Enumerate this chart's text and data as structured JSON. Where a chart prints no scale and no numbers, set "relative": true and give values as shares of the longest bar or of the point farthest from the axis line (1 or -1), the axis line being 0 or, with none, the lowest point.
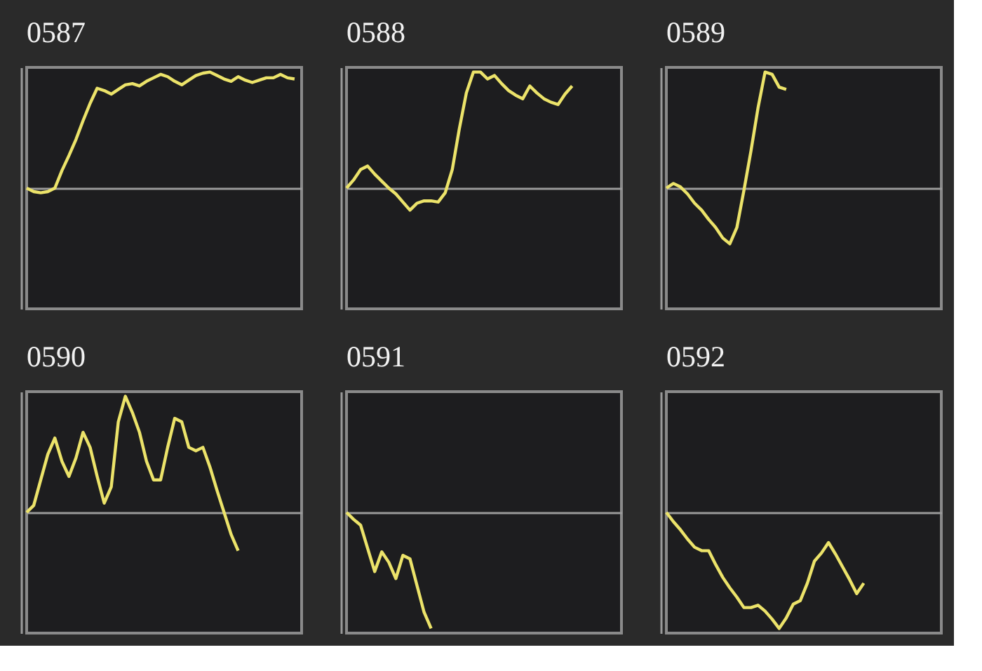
{
  "chart_data": [
    {
      "type": "line",
      "title": "0587",
      "relative": true,
      "tick_labels": false,
      "categories": [
        null,
        null,
        null,
        null,
        null,
        null,
        null,
        null,
        null,
        null,
        null,
        null,
        null,
        null,
        null,
        null,
        null,
        null,
        null,
        null,
        null,
        null,
        null,
        null,
        null,
        null,
        null,
        null,
        null,
        null,
        null,
        null,
        null,
        null,
        null,
        null,
        null,
        null,
        null,
        null
      ],
      "color": "#ece36a",
      "values": [
        0,
        -0.03,
        -0.04,
        -0.03,
        0,
        0.15,
        0.28,
        0.42,
        0.58,
        0.73,
        0.86,
        0.84,
        0.81,
        0.85,
        0.89,
        0.9,
        0.88,
        0.92,
        0.95,
        0.98,
        0.96,
        0.92,
        0.89,
        0.93,
        0.97,
        0.99,
        1,
        0.97,
        0.94,
        0.92,
        0.96,
        0.93,
        0.91,
        0.93,
        0.95,
        0.95,
        0.98,
        0.95,
        0.94,
        null
      ]
    },
    {
      "type": "line",
      "title": "0588",
      "relative": true,
      "tick_labels": false,
      "categories": [
        null,
        null,
        null,
        null,
        null,
        null,
        null,
        null,
        null,
        null,
        null,
        null,
        null,
        null,
        null,
        null,
        null,
        null,
        null,
        null,
        null,
        null,
        null,
        null,
        null,
        null,
        null,
        null,
        null,
        null,
        null,
        null,
        null,
        null,
        null,
        null,
        null,
        null,
        null,
        null
      ],
      "color": "#ece36a",
      "values": [
        0,
        0.07,
        0.16,
        0.19,
        0.12,
        0.06,
        0,
        -0.05,
        -0.12,
        -0.19,
        -0.13,
        -0.11,
        -0.11,
        -0.12,
        -0.04,
        0.16,
        0.51,
        0.82,
        1,
        1,
        0.94,
        0.97,
        0.9,
        0.84,
        0.8,
        0.77,
        0.88,
        0.82,
        0.77,
        0.74,
        0.72,
        0.81,
        0.88,
        null,
        null,
        null,
        null,
        null,
        null,
        null
      ]
    },
    {
      "type": "line",
      "title": "0589",
      "relative": true,
      "tick_labels": false,
      "categories": [
        null,
        null,
        null,
        null,
        null,
        null,
        null,
        null,
        null,
        null,
        null,
        null,
        null,
        null,
        null,
        null,
        null,
        null,
        null,
        null,
        null,
        null,
        null,
        null,
        null,
        null,
        null,
        null,
        null,
        null,
        null,
        null,
        null,
        null,
        null,
        null,
        null,
        null,
        null,
        null
      ],
      "color": "#ece36a",
      "values": [
        0,
        0.04,
        0.01,
        -0.05,
        -0.13,
        -0.19,
        -0.27,
        -0.34,
        -0.43,
        -0.48,
        -0.34,
        -0.02,
        0.32,
        0.69,
        1,
        0.98,
        0.87,
        0.85,
        null,
        null,
        null,
        null,
        null,
        null,
        null,
        null,
        null,
        null,
        null,
        null,
        null,
        null,
        null,
        null,
        null,
        null,
        null,
        null,
        null,
        null
      ]
    },
    {
      "type": "line",
      "title": "0590",
      "relative": true,
      "tick_labels": false,
      "categories": [
        null,
        null,
        null,
        null,
        null,
        null,
        null,
        null,
        null,
        null,
        null,
        null,
        null,
        null,
        null,
        null,
        null,
        null,
        null,
        null,
        null,
        null,
        null,
        null,
        null,
        null,
        null,
        null,
        null,
        null,
        null,
        null,
        null,
        null,
        null,
        null,
        null,
        null,
        null,
        null
      ],
      "color": "#ece36a",
      "values": [
        0,
        0.06,
        0.28,
        0.5,
        0.64,
        0.44,
        0.31,
        0.47,
        0.69,
        0.56,
        0.31,
        0.08,
        0.22,
        0.78,
        1,
        0.86,
        0.69,
        0.44,
        0.28,
        0.28,
        0.56,
        0.81,
        0.78,
        0.56,
        0.53,
        0.56,
        0.39,
        0.19,
        0,
        -0.19,
        -0.33,
        null,
        null,
        null,
        null,
        null,
        null,
        null,
        null,
        null
      ]
    },
    {
      "type": "line",
      "title": "0591",
      "relative": true,
      "tick_labels": false,
      "categories": [
        null,
        null,
        null,
        null,
        null,
        null,
        null,
        null,
        null,
        null,
        null,
        null,
        null,
        null,
        null,
        null,
        null,
        null,
        null,
        null,
        null,
        null,
        null,
        null,
        null,
        null,
        null,
        null,
        null,
        null,
        null,
        null,
        null,
        null,
        null,
        null,
        null,
        null,
        null,
        null
      ],
      "color": "#ece36a",
      "values": [
        0,
        -0.06,
        -0.11,
        -0.31,
        -0.51,
        -0.34,
        -0.43,
        -0.57,
        -0.37,
        -0.4,
        -0.63,
        -0.86,
        -1,
        null,
        null,
        null,
        null,
        null,
        null,
        null,
        null,
        null,
        null,
        null,
        null,
        null,
        null,
        null,
        null,
        null,
        null,
        null,
        null,
        null,
        null,
        null,
        null,
        null,
        null,
        null
      ]
    },
    {
      "type": "line",
      "title": "0592",
      "relative": true,
      "tick_labels": false,
      "categories": [
        null,
        null,
        null,
        null,
        null,
        null,
        null,
        null,
        null,
        null,
        null,
        null,
        null,
        null,
        null,
        null,
        null,
        null,
        null,
        null,
        null,
        null,
        null,
        null,
        null,
        null,
        null,
        null,
        null,
        null,
        null,
        null,
        null,
        null,
        null,
        null,
        null,
        null,
        null,
        null
      ],
      "color": "#ece36a",
      "values": [
        0,
        -0.08,
        -0.15,
        -0.23,
        -0.3,
        -0.33,
        -0.33,
        -0.45,
        -0.56,
        -0.65,
        -0.73,
        -0.82,
        -0.82,
        -0.8,
        -0.85,
        -0.92,
        -1,
        -0.91,
        -0.79,
        -0.76,
        -0.61,
        -0.42,
        -0.35,
        -0.26,
        -0.36,
        -0.47,
        -0.58,
        -0.7,
        -0.61,
        null,
        null,
        null,
        null,
        null,
        null,
        null,
        null,
        null,
        null,
        null
      ]
    }
  ]
}
